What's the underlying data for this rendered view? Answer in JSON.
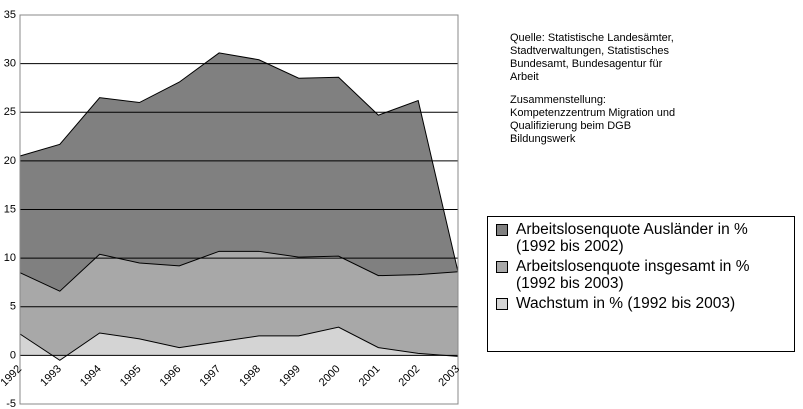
{
  "chart_data": {
    "type": "area",
    "categories": [
      "1992",
      "1993",
      "1994",
      "1995",
      "1996",
      "1997",
      "1998",
      "1999",
      "2000",
      "2001",
      "2002",
      "2003"
    ],
    "series": [
      {
        "name": "Arbeitslosenquote Ausländer in % (1992 bis 2002)",
        "color": "#808080",
        "values": [
          20.5,
          21.7,
          26.5,
          26.0,
          28.1,
          31.1,
          30.4,
          28.5,
          28.6,
          24.7,
          26.2,
          8.6
        ]
      },
      {
        "name": "Arbeitslosenquote insgesamt in % (1992 bis 2003)",
        "color": "#a8a8a8",
        "values": [
          8.5,
          6.6,
          10.4,
          9.5,
          9.2,
          10.7,
          10.7,
          10.1,
          10.2,
          8.2,
          8.3,
          8.6
        ]
      },
      {
        "name": "Wachstum in % (1992 bis 2003)",
        "color": "#d4d4d4",
        "values": [
          2.2,
          -0.5,
          2.3,
          1.7,
          0.8,
          1.4,
          2.0,
          2.0,
          2.9,
          0.8,
          0.2,
          -0.1
        ]
      }
    ],
    "ylim": [
      -5,
      35
    ],
    "yticks": [
      -5,
      0,
      5,
      10,
      15,
      20,
      25,
      30,
      35
    ],
    "grid": true,
    "annotations": [
      [
        "Quelle: Statistische Landesämter,",
        "Stadtverwaltungen, Statistisches",
        "Bundesamt, Bundesagentur für",
        "Arbeit"
      ],
      [
        "Zusammenstellung:",
        "Kompetenzzentrum Migration und",
        "Qualifizierung beim DGB",
        "Bildungswerk"
      ]
    ],
    "legend": "right"
  }
}
